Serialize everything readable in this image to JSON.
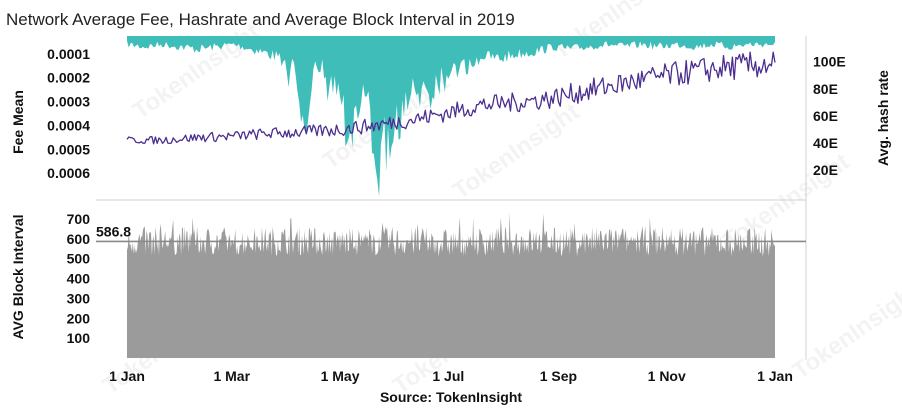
{
  "colors": {
    "fee": "#3ebdb9",
    "hashrate": "#4b2e8f",
    "block_interval": "#9b9b9b",
    "reference_line": "#8a8a8a",
    "divider": "#d0d0d0"
  },
  "chart_data": {
    "type": "area",
    "title": "Network Average Fee, Hashrate and Average Block Interval in 2019",
    "source": "Source: TokenInsight",
    "watermark": "TokenInsight",
    "x_ticks": [
      "1 Jan",
      "1 Mar",
      "1 May",
      "1 Jul",
      "1 Sep",
      "1 Nov",
      "1 Jan"
    ],
    "x_tick_days": [
      0,
      59,
      120,
      181,
      243,
      304,
      365
    ],
    "top_panel": {
      "left_axis": {
        "label": "Fee Mean",
        "ticks": [
          "0.0001",
          "0.0002",
          "0.0003",
          "0.0004",
          "0.0005",
          "0.0006"
        ],
        "tick_values": [
          0.0001,
          0.0002,
          0.0003,
          0.0004,
          0.0005,
          0.0006
        ],
        "ylim": [
          2.5e-05,
          0.0007
        ],
        "inverted": true
      },
      "right_axis": {
        "label": "Avg. hash rate",
        "ticks": [
          "20E",
          "40E",
          "60E",
          "80E",
          "100E"
        ],
        "tick_values": [
          20,
          40,
          60,
          80,
          100
        ],
        "ylim": [
          0,
          119
        ]
      },
      "series": [
        {
          "name": "Fee Mean",
          "axis": "left",
          "style": "area",
          "x": [
            0,
            10,
            20,
            30,
            40,
            50,
            60,
            70,
            80,
            90,
            95,
            100,
            105,
            110,
            115,
            120,
            125,
            130,
            135,
            138,
            140,
            142,
            145,
            148,
            150,
            155,
            160,
            165,
            170,
            175,
            180,
            185,
            190,
            200,
            210,
            220,
            230,
            240,
            250,
            260,
            270,
            280,
            290,
            300,
            310,
            320,
            330,
            340,
            350,
            360,
            365
          ],
          "values": [
            6e-05,
            7e-05,
            6e-05,
            7e-05,
            8e-05,
            7e-05,
            6e-05,
            8e-05,
            0.0001,
            0.00013,
            0.00018,
            0.00042,
            0.00015,
            0.00016,
            0.0002,
            0.00025,
            0.00042,
            0.00037,
            0.00025,
            0.00039,
            0.00047,
            0.00064,
            0.00048,
            0.0005,
            0.00043,
            0.00036,
            0.00028,
            0.00022,
            0.00025,
            0.00019,
            0.00017,
            0.00014,
            0.00016,
            0.00011,
            0.00012,
            0.0001,
            9e-05,
            7e-05,
            8e-05,
            7e-05,
            6e-05,
            7e-05,
            6e-05,
            7e-05,
            6e-05,
            7e-05,
            6e-05,
            7e-05,
            6e-05,
            6e-05,
            6e-05
          ]
        },
        {
          "name": "Avg. hash rate",
          "axis": "right",
          "style": "line",
          "x": [
            0,
            20,
            40,
            60,
            80,
            100,
            120,
            140,
            160,
            180,
            200,
            220,
            240,
            260,
            280,
            300,
            320,
            340,
            360,
            365
          ],
          "values": [
            42,
            42,
            44,
            45,
            47,
            48,
            50,
            53,
            57,
            62,
            68,
            70,
            73,
            79,
            84,
            89,
            93,
            96,
            98,
            99
          ]
        }
      ]
    },
    "bottom_panel": {
      "axis": {
        "label": "AVG Block Interval",
        "ticks": [
          "100",
          "200",
          "300",
          "400",
          "500",
          "600",
          "700"
        ],
        "tick_values": [
          100,
          200,
          300,
          400,
          500,
          600,
          700
        ],
        "ylim": [
          0,
          780
        ]
      },
      "reference_value": 586.8,
      "reference_label": "586.8",
      "series": [
        {
          "name": "AVG Block Interval",
          "style": "area",
          "x": [
            0,
            30,
            60,
            90,
            120,
            150,
            180,
            210,
            240,
            270,
            300,
            330,
            365
          ],
          "values": [
            586,
            590,
            585,
            592,
            583,
            588,
            580,
            590,
            585,
            588,
            590,
            586,
            584
          ]
        }
      ]
    }
  }
}
